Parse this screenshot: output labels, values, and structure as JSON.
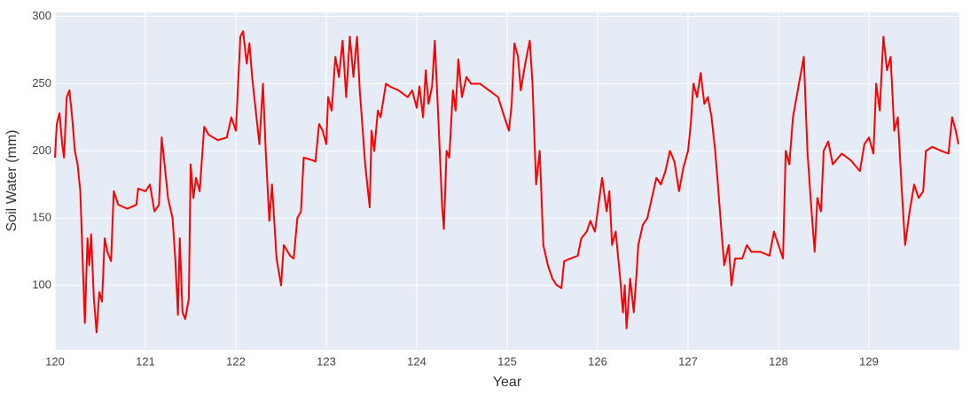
{
  "chart_data": {
    "type": "line",
    "xlabel": "Year",
    "ylabel": "Soil Water (mm)",
    "xlim": [
      120,
      130
    ],
    "ylim": [
      52,
      303
    ],
    "xticks": [
      120,
      121,
      122,
      123,
      124,
      125,
      126,
      127,
      128,
      129
    ],
    "yticks": [
      100,
      150,
      200,
      250,
      300
    ],
    "grid": true,
    "x": [
      120.0,
      120.02,
      120.05,
      120.08,
      120.1,
      120.13,
      120.16,
      120.19,
      120.22,
      120.25,
      120.28,
      120.33,
      120.36,
      120.38,
      120.4,
      120.43,
      120.46,
      120.49,
      120.52,
      120.55,
      120.58,
      120.62,
      120.65,
      120.7,
      120.8,
      120.9,
      120.92,
      121.0,
      121.05,
      121.1,
      121.15,
      121.18,
      121.22,
      121.25,
      121.3,
      121.33,
      121.36,
      121.38,
      121.41,
      121.44,
      121.48,
      121.5,
      121.53,
      121.56,
      121.6,
      121.65,
      121.7,
      121.8,
      121.9,
      121.95,
      122.0,
      122.05,
      122.08,
      122.12,
      122.15,
      122.18,
      122.22,
      122.26,
      122.3,
      122.33,
      122.37,
      122.4,
      122.45,
      122.5,
      122.53,
      122.6,
      122.64,
      122.68,
      122.72,
      122.75,
      122.85,
      122.88,
      122.92,
      122.96,
      123.0,
      123.02,
      123.06,
      123.1,
      123.14,
      123.18,
      123.22,
      123.26,
      123.3,
      123.34,
      123.37,
      123.4,
      123.43,
      123.48,
      123.5,
      123.53,
      123.57,
      123.6,
      123.66,
      123.7,
      123.8,
      123.9,
      123.95,
      124.0,
      124.03,
      124.07,
      124.1,
      124.13,
      124.17,
      124.2,
      124.24,
      124.28,
      124.3,
      124.33,
      124.36,
      124.4,
      124.43,
      124.46,
      124.5,
      124.55,
      124.6,
      124.7,
      124.8,
      124.9,
      124.97,
      125.02,
      125.05,
      125.08,
      125.12,
      125.15,
      125.2,
      125.25,
      125.28,
      125.32,
      125.36,
      125.4,
      125.45,
      125.5,
      125.55,
      125.6,
      125.63,
      125.7,
      125.78,
      125.82,
      125.88,
      125.92,
      125.97,
      126.02,
      126.05,
      126.1,
      126.13,
      126.16,
      126.2,
      126.25,
      126.28,
      126.3,
      126.32,
      126.36,
      126.4,
      126.43,
      126.45,
      126.5,
      126.55,
      126.6,
      126.65,
      126.7,
      126.75,
      126.8,
      126.85,
      126.9,
      126.95,
      127.0,
      127.03,
      127.06,
      127.1,
      127.14,
      127.18,
      127.22,
      127.26,
      127.3,
      127.33,
      127.37,
      127.4,
      127.45,
      127.48,
      127.52,
      127.6,
      127.65,
      127.7,
      127.8,
      127.9,
      127.95,
      128.0,
      128.05,
      128.08,
      128.12,
      128.16,
      128.2,
      128.28,
      128.32,
      128.36,
      128.4,
      128.43,
      128.47,
      128.5,
      128.55,
      128.6,
      128.7,
      128.8,
      128.9,
      128.95,
      129.0,
      129.05,
      129.08,
      129.12,
      129.16,
      129.2,
      129.24,
      129.28,
      129.32,
      129.36,
      129.4,
      129.45,
      129.5,
      129.55,
      129.6,
      129.63,
      129.7,
      129.8,
      129.88,
      129.92,
      129.96,
      129.99
    ],
    "series": [
      {
        "color": "#ff0000",
        "values": [
          195,
          220,
          228,
          205,
          195,
          240,
          245,
          225,
          200,
          190,
          170,
          72,
          135,
          115,
          138,
          90,
          65,
          95,
          88,
          135,
          125,
          118,
          170,
          160,
          157,
          160,
          172,
          170,
          175,
          155,
          160,
          210,
          185,
          165,
          150,
          120,
          78,
          135,
          80,
          75,
          90,
          190,
          165,
          180,
          170,
          218,
          212,
          208,
          210,
          225,
          215,
          285,
          289,
          265,
          280,
          255,
          230,
          205,
          250,
          200,
          148,
          175,
          120,
          100,
          130,
          122,
          120,
          150,
          155,
          195,
          193,
          192,
          220,
          215,
          205,
          240,
          230,
          270,
          255,
          282,
          240,
          285,
          255,
          285,
          245,
          218,
          190,
          158,
          215,
          200,
          230,
          225,
          250,
          248,
          245,
          240,
          245,
          232,
          248,
          225,
          260,
          235,
          248,
          282,
          222,
          160,
          142,
          200,
          195,
          245,
          230,
          268,
          240,
          255,
          250,
          250,
          245,
          240,
          225,
          215,
          235,
          280,
          270,
          245,
          265,
          282,
          250,
          175,
          200,
          130,
          115,
          105,
          100,
          98,
          118,
          120,
          122,
          135,
          140,
          148,
          140,
          165,
          180,
          155,
          170,
          130,
          140,
          105,
          80,
          100,
          68,
          105,
          80,
          108,
          130,
          145,
          150,
          165,
          180,
          175,
          185,
          200,
          192,
          170,
          188,
          200,
          220,
          250,
          240,
          258,
          235,
          240,
          225,
          200,
          175,
          140,
          115,
          130,
          100,
          120,
          120,
          130,
          125,
          125,
          122,
          140,
          130,
          120,
          200,
          190,
          225,
          240,
          270,
          200,
          160,
          125,
          165,
          155,
          200,
          207,
          190,
          198,
          193,
          185,
          205,
          210,
          198,
          250,
          230,
          285,
          260,
          270,
          215,
          225,
          175,
          130,
          155,
          175,
          165,
          170,
          200,
          203,
          200,
          198,
          225,
          215,
          205
        ]
      }
    ]
  }
}
